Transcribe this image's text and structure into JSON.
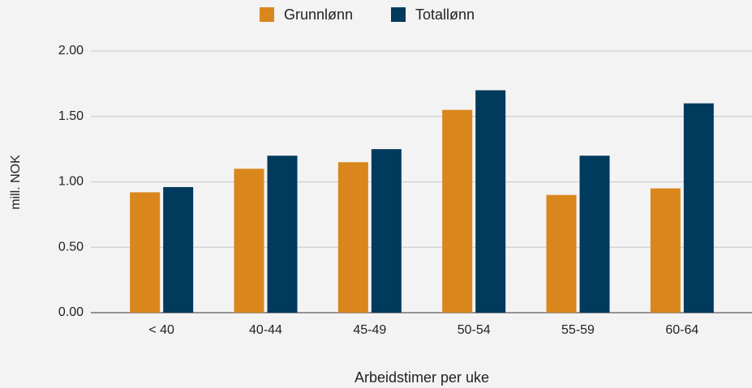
{
  "chart_data": {
    "type": "bar",
    "categories": [
      "< 40",
      "40-44",
      "45-49",
      "50-54",
      "55-59",
      "60-64"
    ],
    "series": [
      {
        "name": "Grunnlønn",
        "color": "#d9861c",
        "values": [
          0.92,
          1.1,
          1.15,
          1.55,
          0.9,
          0.95
        ]
      },
      {
        "name": "Totallønn",
        "color": "#003a5c",
        "values": [
          0.96,
          1.2,
          1.25,
          1.7,
          1.2,
          1.6
        ]
      }
    ],
    "ylabel": "mill. NOK",
    "xlabel": "Arbeidstimer per uke",
    "ylim": [
      0,
      2
    ],
    "yticks": [
      {
        "value": 0,
        "label": "0.00"
      },
      {
        "value": 0.5,
        "label": "0.50"
      },
      {
        "value": 1,
        "label": "1.00"
      },
      {
        "value": 1.5,
        "label": "1.50"
      },
      {
        "value": 2,
        "label": "2.00"
      }
    ],
    "grid": true,
    "legend": "top"
  }
}
